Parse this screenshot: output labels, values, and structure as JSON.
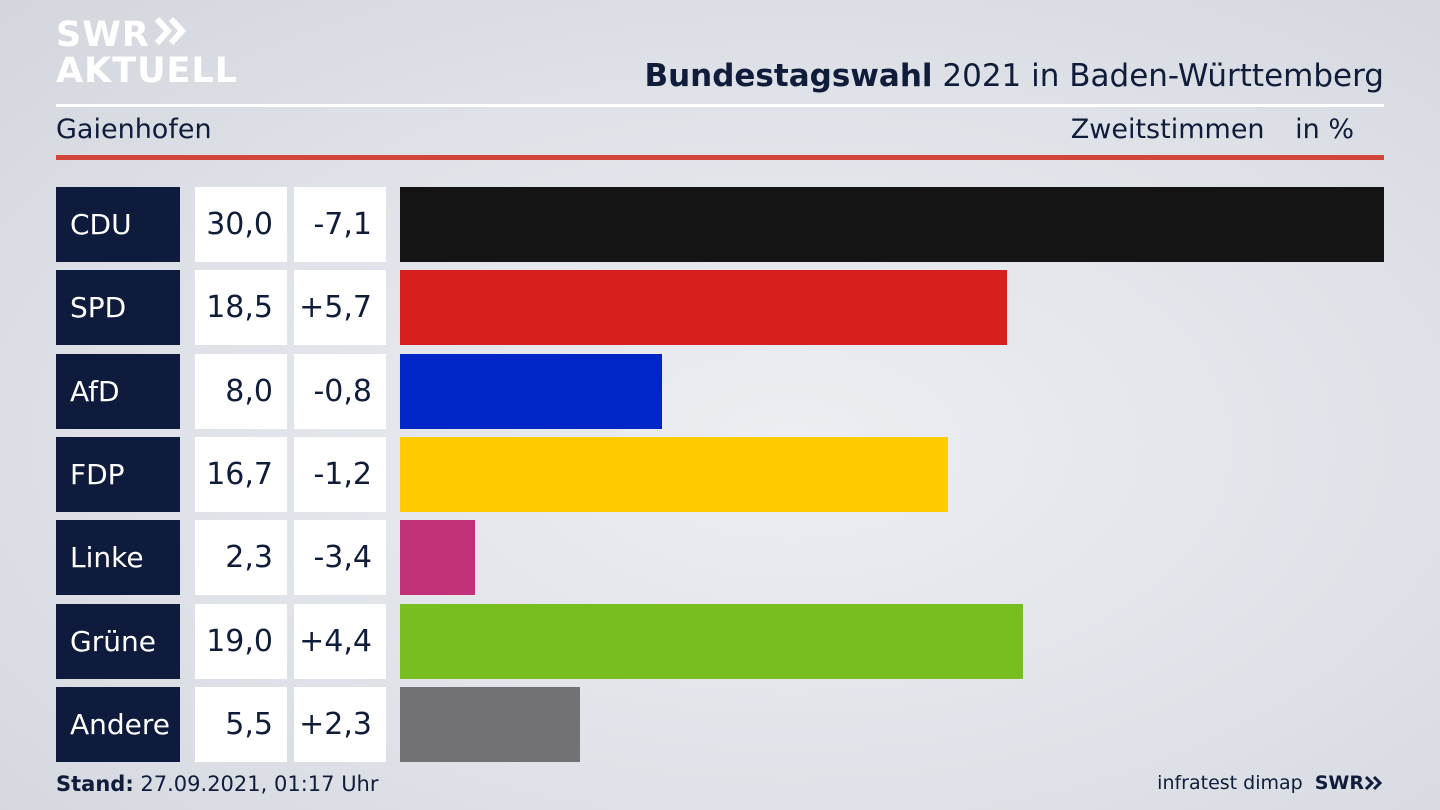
{
  "logo": {
    "line1": "SWR",
    "line2": "AKTUELL"
  },
  "header": {
    "title_bold": "Bundestagswahl",
    "title_rest": "2021 in Baden-Württemberg",
    "location": "Gaienhofen",
    "measure": "Zweitstimmen",
    "unit": "in %"
  },
  "chart_data": {
    "type": "bar",
    "orientation": "horizontal",
    "categories": [
      "CDU",
      "SPD",
      "AfD",
      "FDP",
      "Linke",
      "Grüne",
      "Andere"
    ],
    "values": [
      30.0,
      18.5,
      8.0,
      16.7,
      2.3,
      19.0,
      5.5
    ],
    "changes": [
      -7.1,
      5.7,
      -0.8,
      -1.2,
      -3.4,
      4.4,
      2.3
    ],
    "values_label": [
      "30,0",
      "18,5",
      "8,0",
      "16,7",
      "2,3",
      "19,0",
      "5,5"
    ],
    "changes_label": [
      "-7,1",
      "+5,7",
      "-0,8",
      "-1,2",
      "-3,4",
      "+4,4",
      "+2,3"
    ],
    "colors": [
      "#141414",
      "#d71f1f",
      "#0026c8",
      "#ffcc00",
      "#c03177",
      "#78be20",
      "#727274"
    ],
    "xlim": [
      0,
      30.0
    ]
  },
  "footer": {
    "stand_label": "Stand:",
    "stand_value": "27.09.2021, 01:17 Uhr",
    "source": "infratest dimap",
    "brand": "SWR"
  }
}
